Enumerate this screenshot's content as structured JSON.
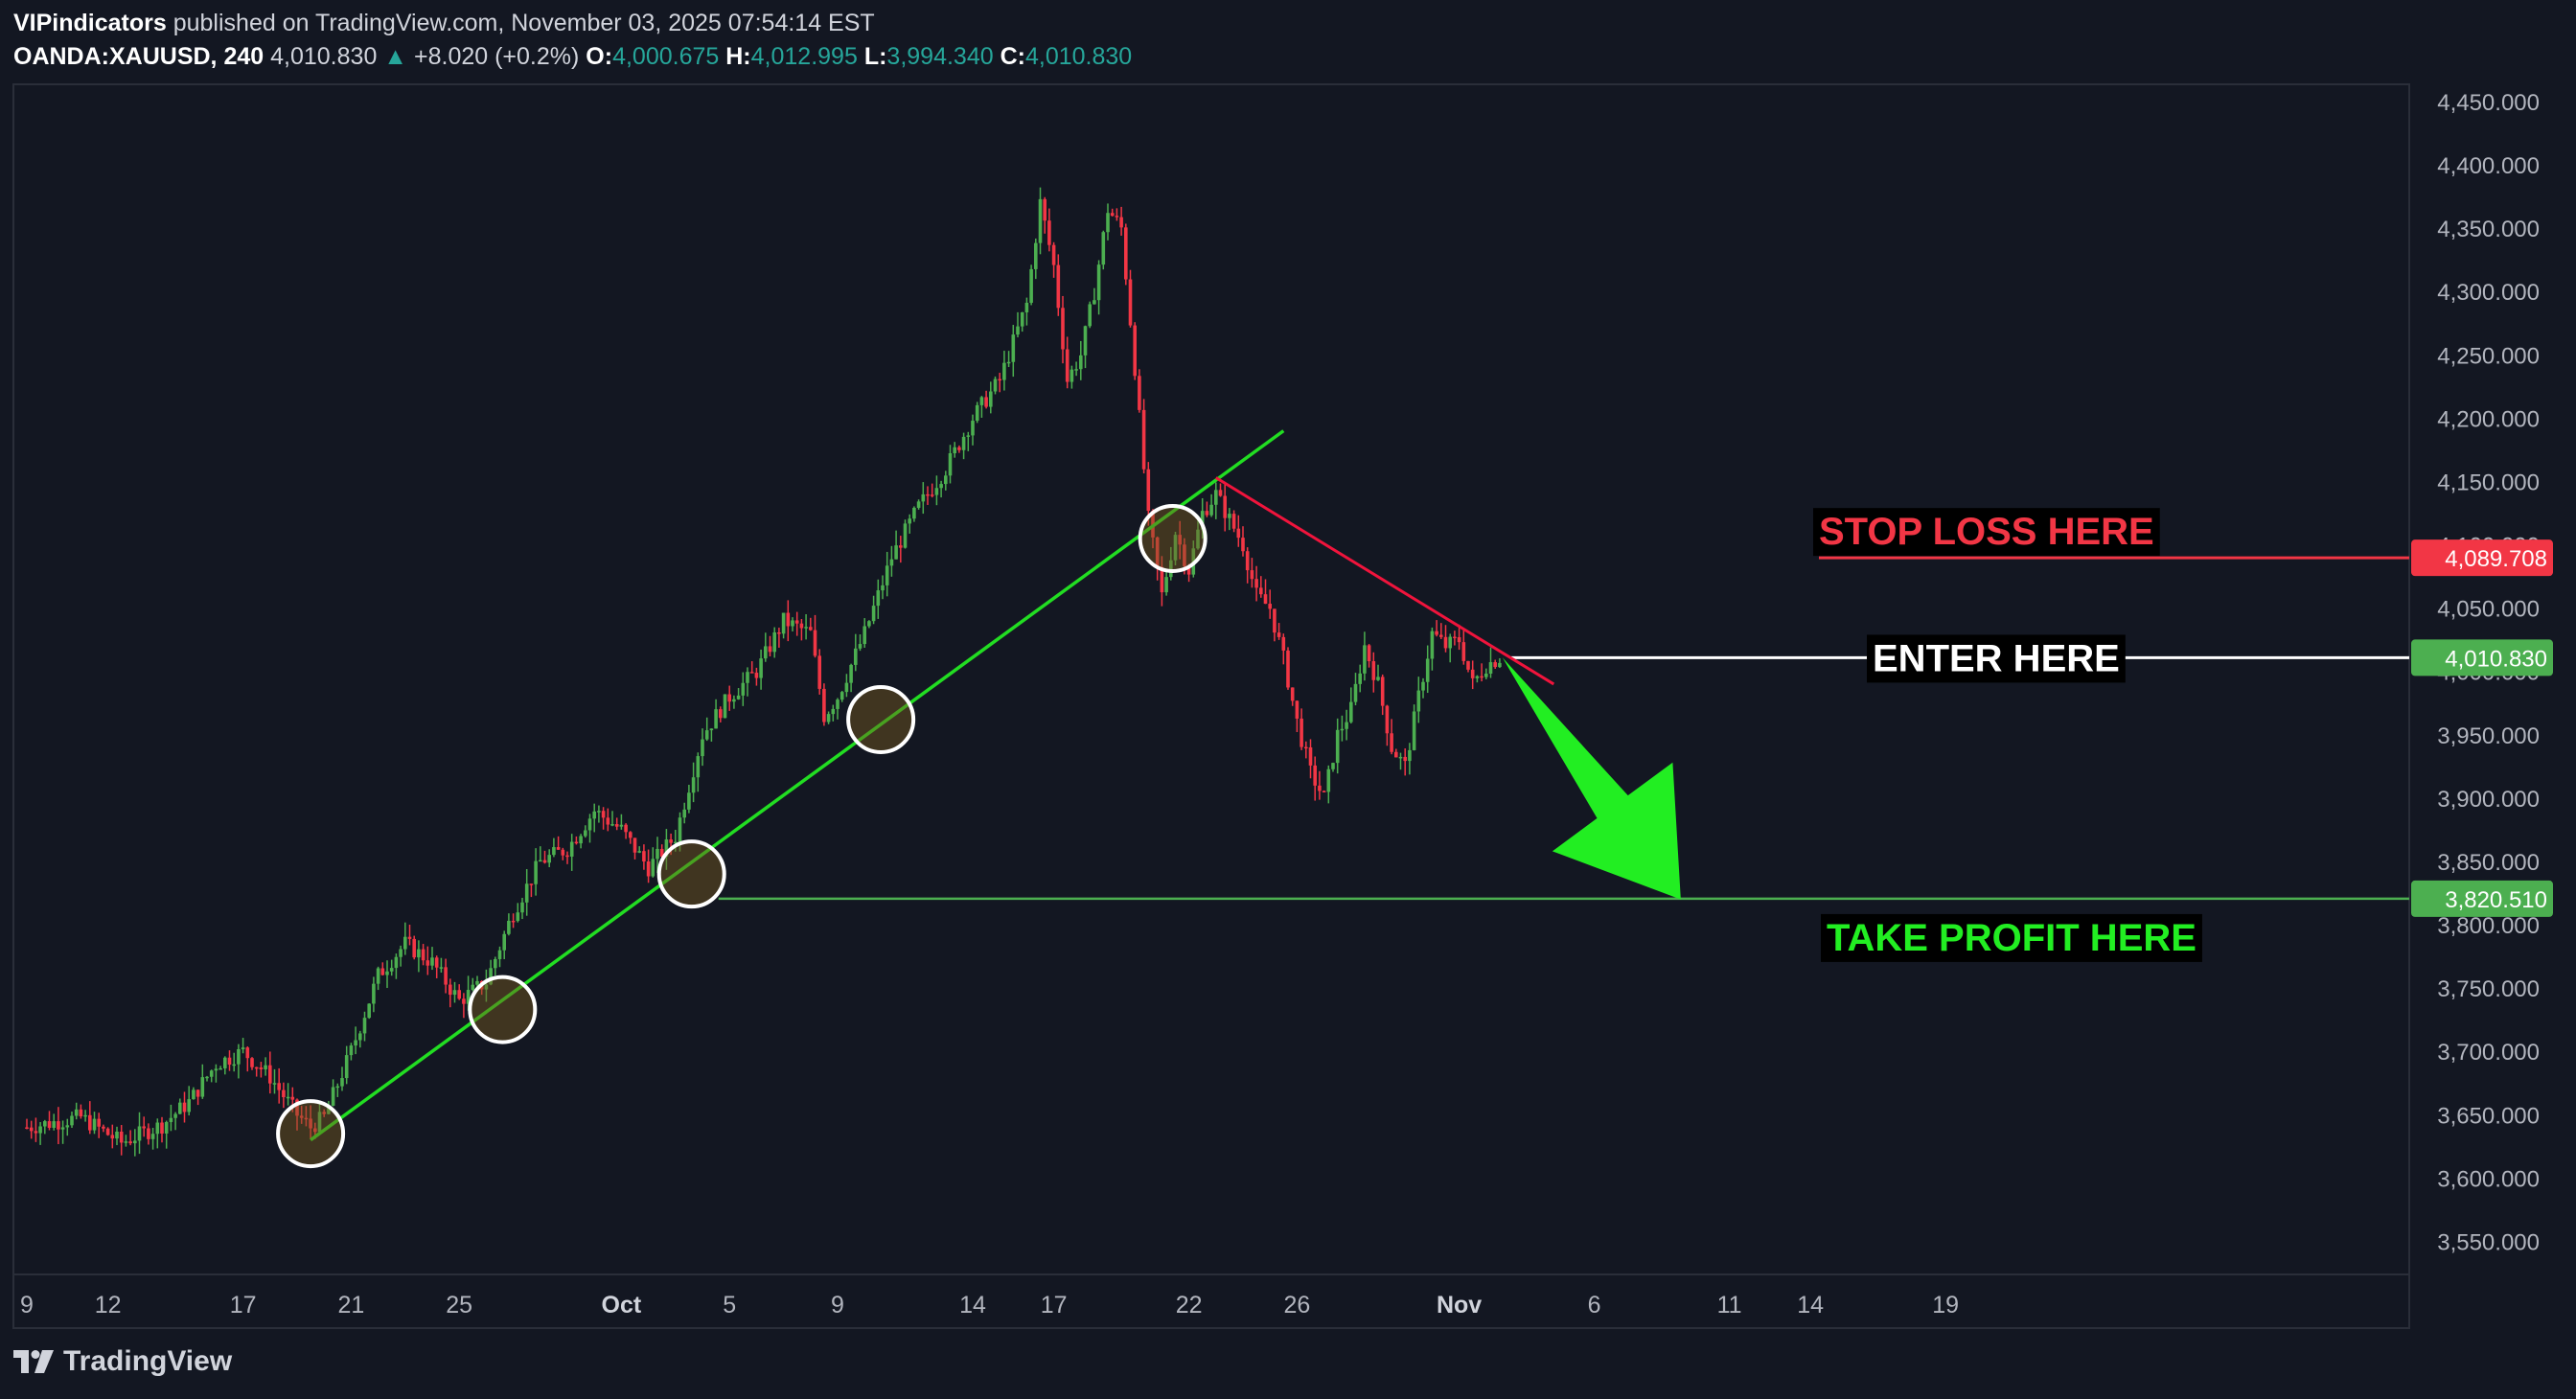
{
  "header": {
    "publisher": "VIPindicators",
    "published_text": "published on TradingView.com, November 03, 2025 07:54:14 EST",
    "symbol": "OANDA:XAUUSD, 240",
    "last": "4,010.830",
    "change": "+8.020 (+0.2%)",
    "o_label": "O:",
    "o_value": "4,000.675",
    "h_label": "H:",
    "h_value": "4,012.995",
    "l_label": "L:",
    "l_value": "3,994.340",
    "c_label": "C:",
    "c_value": "4,010.830"
  },
  "footer": {
    "brand": "TradingView"
  },
  "colors": {
    "background": "#131722",
    "up": "#26a69a",
    "candle_up": "#4caf50",
    "candle_down": "#f23645",
    "trendline": "#22dd22",
    "resistance": "#f0143c",
    "stop_loss": "#f23645",
    "take_profit": "#4caf50",
    "arrow": "#22ee22"
  },
  "chart_data": {
    "type": "candlestick",
    "symbol": "OANDA:XAUUSD",
    "interval": "240",
    "ylim": [
      3525,
      4475
    ],
    "y_ticks": [
      "4,450.000",
      "4,400.000",
      "4,350.000",
      "4,300.000",
      "4,250.000",
      "4,200.000",
      "4,150.000",
      "4,100.000",
      "4,050.000",
      "4,000.000",
      "3,950.000",
      "3,900.000",
      "3,850.000",
      "3,800.000",
      "3,750.000",
      "3,700.000",
      "3,650.000",
      "3,600.000",
      "3,550.000"
    ],
    "x_ticks": [
      "9",
      "12",
      "17",
      "21",
      "25",
      "Oct",
      "5",
      "9",
      "14",
      "17",
      "22",
      "26",
      "Nov",
      "6",
      "11",
      "14",
      "19"
    ],
    "price_series": [
      {
        "d": 0,
        "p": 3640
      },
      {
        "d": 2,
        "p": 3648
      },
      {
        "d": 3.5,
        "p": 3628
      },
      {
        "d": 5,
        "p": 3642
      },
      {
        "d": 6,
        "p": 3660
      },
      {
        "d": 7,
        "p": 3690
      },
      {
        "d": 8,
        "p": 3700
      },
      {
        "d": 9,
        "p": 3680
      },
      {
        "d": 9.5,
        "p": 3665
      },
      {
        "d": 10,
        "p": 3650
      },
      {
        "d": 10.5,
        "p": 3640
      },
      {
        "d": 11,
        "p": 3648
      },
      {
        "d": 12,
        "p": 3700
      },
      {
        "d": 13,
        "p": 3760
      },
      {
        "d": 14,
        "p": 3785
      },
      {
        "d": 15,
        "p": 3770
      },
      {
        "d": 16,
        "p": 3740
      },
      {
        "d": 17,
        "p": 3755
      },
      {
        "d": 18,
        "p": 3810
      },
      {
        "d": 19,
        "p": 3850
      },
      {
        "d": 20,
        "p": 3860
      },
      {
        "d": 21,
        "p": 3890
      },
      {
        "d": 22,
        "p": 3875
      },
      {
        "d": 23,
        "p": 3845
      },
      {
        "d": 24,
        "p": 3870
      },
      {
        "d": 25,
        "p": 3950
      },
      {
        "d": 26,
        "p": 3980
      },
      {
        "d": 27,
        "p": 4000
      },
      {
        "d": 28,
        "p": 4040
      },
      {
        "d": 29,
        "p": 4030
      },
      {
        "d": 29.5,
        "p": 3965
      },
      {
        "d": 30,
        "p": 3980
      },
      {
        "d": 31,
        "p": 4030
      },
      {
        "d": 32,
        "p": 4090
      },
      {
        "d": 33,
        "p": 4130
      },
      {
        "d": 34,
        "p": 4160
      },
      {
        "d": 35,
        "p": 4200
      },
      {
        "d": 36,
        "p": 4230
      },
      {
        "d": 37,
        "p": 4290
      },
      {
        "d": 37.5,
        "p": 4370
      },
      {
        "d": 38,
        "p": 4320
      },
      {
        "d": 38.5,
        "p": 4230
      },
      {
        "d": 39,
        "p": 4250
      },
      {
        "d": 39.5,
        "p": 4300
      },
      {
        "d": 40,
        "p": 4365
      },
      {
        "d": 40.5,
        "p": 4350
      },
      {
        "d": 41,
        "p": 4240
      },
      {
        "d": 41.5,
        "p": 4120
      },
      {
        "d": 42,
        "p": 4060
      },
      {
        "d": 42.5,
        "p": 4110
      },
      {
        "d": 43,
        "p": 4080
      },
      {
        "d": 43.5,
        "p": 4125
      },
      {
        "d": 44,
        "p": 4140
      },
      {
        "d": 44.5,
        "p": 4120
      },
      {
        "d": 45,
        "p": 4100
      },
      {
        "d": 45.5,
        "p": 4060
      },
      {
        "d": 46,
        "p": 4050
      },
      {
        "d": 46.5,
        "p": 4010
      },
      {
        "d": 47,
        "p": 3960
      },
      {
        "d": 47.5,
        "p": 3920
      },
      {
        "d": 48,
        "p": 3900
      },
      {
        "d": 48.5,
        "p": 3950
      },
      {
        "d": 49,
        "p": 3970
      },
      {
        "d": 49.5,
        "p": 4020
      },
      {
        "d": 50,
        "p": 3990
      },
      {
        "d": 50.5,
        "p": 3940
      },
      {
        "d": 51,
        "p": 3925
      },
      {
        "d": 51.5,
        "p": 3980
      },
      {
        "d": 52,
        "p": 4030
      },
      {
        "d": 52.5,
        "p": 4020
      },
      {
        "d": 53,
        "p": 4025
      },
      {
        "d": 53.5,
        "p": 3990
      },
      {
        "d": 54,
        "p": 4005
      },
      {
        "d": 54.5,
        "p": 4011
      }
    ],
    "trendline_up": {
      "from": {
        "d": 10.5,
        "p": 3630
      },
      "to": {
        "d": 46.5,
        "p": 4190
      }
    },
    "trendline_down": {
      "from": {
        "d": 44,
        "p": 4153
      },
      "to": {
        "d": 56.5,
        "p": 3990
      }
    },
    "touch_circles": [
      {
        "d": 10.5,
        "p": 3635
      },
      {
        "d": 17.6,
        "p": 3733
      },
      {
        "d": 24.6,
        "p": 3840
      },
      {
        "d": 31.6,
        "p": 3962
      },
      {
        "d": 42.4,
        "p": 4105
      }
    ],
    "stop_loss": {
      "price": "4,089.708",
      "value": 4089.708,
      "label": "STOP LOSS HERE"
    },
    "entry": {
      "price": "4,010.830",
      "value": 4010.83,
      "label": "ENTER HERE"
    },
    "take_profit": {
      "price": "3,820.510",
      "value": 3820.51,
      "label": "TAKE PROFIT HERE"
    },
    "arrow": {
      "from": {
        "d": 54.6,
        "p": 4011
      },
      "to": {
        "d": 61.2,
        "p": 3820
      }
    },
    "grid": false
  }
}
